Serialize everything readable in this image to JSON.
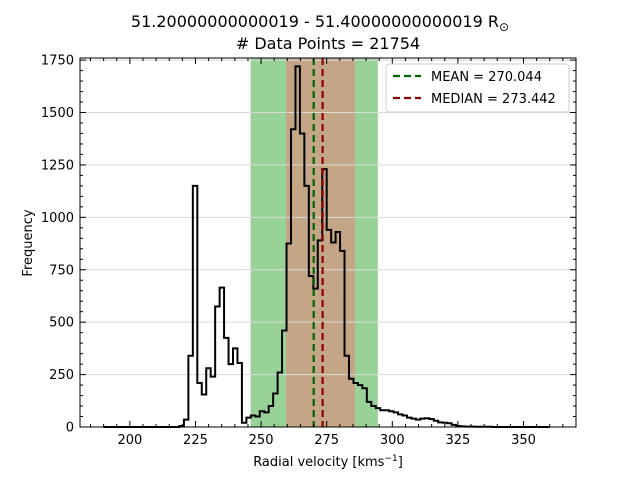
{
  "chart_data": {
    "type": "histogram",
    "title_line1": "51.20000000000019 - 51.40000000000019 R",
    "title_sun_symbol": "⊙",
    "title_line2": "# Data Points = 21754",
    "xlabel": "Radial velocity [kms",
    "xlabel_sup": "−1",
    "xlabel_end": "]",
    "ylabel": "Frequency",
    "xlim": [
      181,
      370
    ],
    "ylim": [
      0,
      1760
    ],
    "xticks": [
      "200",
      "225",
      "250",
      "275",
      "300",
      "325",
      "350"
    ],
    "yticks": [
      "0",
      "250",
      "500",
      "750",
      "1000",
      "1250",
      "1500",
      "1750"
    ],
    "grid": "horizontal",
    "legend_position": "top-right",
    "mean": {
      "label": "MEAN = 270.044",
      "value": 270.044,
      "color": "#006400"
    },
    "median": {
      "label": "MEDIAN = 273.442",
      "value": 273.442,
      "color": "#8b0000"
    },
    "bands": [
      {
        "from": 246.0,
        "to": 294.5,
        "color": "#98d297"
      },
      {
        "from": 259.5,
        "to": 285.8,
        "color": "#c4a686"
      }
    ],
    "bin_edges": [
      190,
      191.7,
      193.4,
      195.1,
      196.8,
      198.5,
      200.2,
      201.9,
      203.6,
      205.3,
      207.0,
      208.7,
      210.4,
      212.1,
      213.8,
      215.5,
      217.2,
      218.9,
      220.6,
      222.3,
      224.0,
      225.7,
      227.4,
      229.1,
      230.8,
      232.5,
      234.2,
      235.9,
      237.6,
      239.3,
      241.0,
      242.7,
      244.4,
      246.1,
      247.8,
      249.5,
      251.2,
      252.9,
      254.6,
      256.3,
      258.0,
      259.7,
      261.4,
      263.1,
      264.8,
      266.5,
      268.2,
      269.9,
      271.6,
      273.3,
      275.0,
      276.7,
      278.4,
      280.1,
      281.8,
      283.5,
      285.2,
      286.9,
      288.6,
      290.3,
      292.0,
      293.7,
      295.4,
      297.1,
      298.8,
      300.5,
      302.2,
      303.9,
      305.6,
      307.3,
      309.0,
      310.7,
      312.4,
      314.1,
      315.8,
      317.5,
      319.2,
      320.9,
      322.6,
      324.3,
      326.0,
      327.7,
      329.4,
      331.1,
      332.8,
      334.5,
      336.2,
      337.9,
      339.6,
      341.3,
      343.0,
      344.7,
      346.4,
      348.1,
      349.8,
      351.5,
      353.2,
      354.9,
      356.6,
      358.3,
      360.0
    ],
    "counts": [
      0,
      0,
      0,
      0,
      0,
      0,
      0,
      0,
      0,
      0,
      0,
      0,
      0,
      0,
      0,
      0,
      0,
      5,
      35,
      340,
      1150,
      210,
      155,
      280,
      240,
      575,
      665,
      425,
      300,
      375,
      305,
      20,
      45,
      55,
      50,
      75,
      70,
      100,
      160,
      260,
      460,
      875,
      1420,
      1720,
      1400,
      1150,
      720,
      660,
      890,
      1230,
      940,
      880,
      930,
      840,
      340,
      230,
      210,
      200,
      185,
      120,
      100,
      90,
      80,
      80,
      75,
      70,
      60,
      55,
      45,
      40,
      35,
      40,
      42,
      38,
      30,
      22,
      20,
      18,
      10,
      5,
      3,
      2,
      2,
      1,
      1,
      1,
      1,
      0,
      0,
      0,
      0,
      0,
      0,
      0,
      0,
      0,
      0,
      0,
      0,
      0
    ]
  }
}
